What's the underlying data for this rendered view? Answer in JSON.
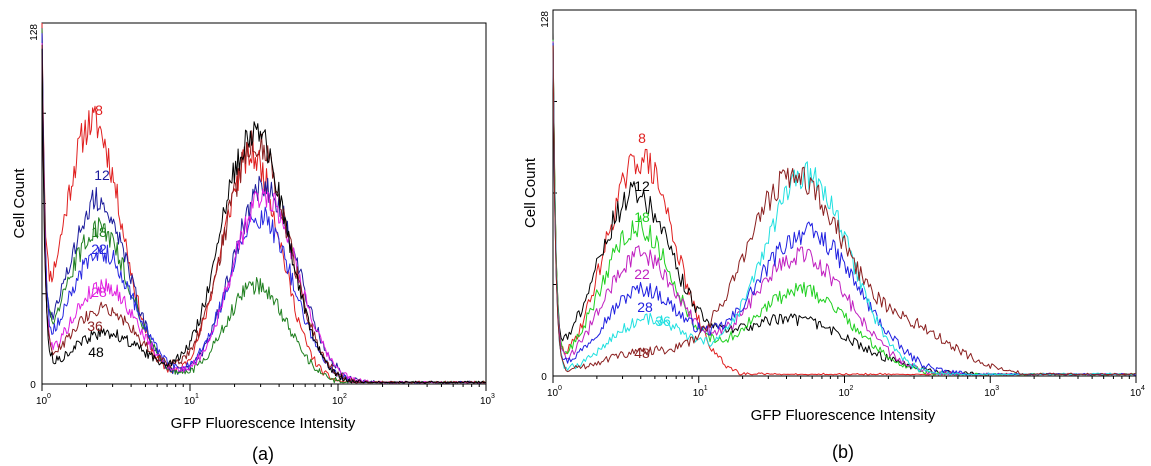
{
  "chart_data": [
    {
      "type": "line",
      "panel_label": "(a)",
      "xlabel": "GFP Fluorescence Intensity",
      "ylabel": "Cell Count",
      "xscale": "log",
      "xlim": [
        1,
        1000
      ],
      "ylim": [
        0,
        128
      ],
      "x_ticks": [
        {
          "base": "10",
          "exp": "0"
        },
        {
          "base": "10",
          "exp": "1"
        },
        {
          "base": "10",
          "exp": "2"
        },
        {
          "base": "10",
          "exp": "3"
        }
      ],
      "y_ticks": [
        "0",
        "128"
      ],
      "grid": false,
      "series": [
        {
          "name": "8",
          "color": "#e02020",
          "peaks": [
            {
              "x": 2.2,
              "y": 93,
              "w": 0.2
            },
            {
              "x": 26,
              "y": 81,
              "w": 0.2
            }
          ]
        },
        {
          "name": "12",
          "color": "#1c1c9c",
          "peaks": [
            {
              "x": 2.4,
              "y": 65,
              "w": 0.21
            },
            {
              "x": 32,
              "y": 70,
              "w": 0.22
            }
          ]
        },
        {
          "name": "18",
          "color": "#208020",
          "peaks": [
            {
              "x": 2.4,
              "y": 55,
              "w": 0.22
            },
            {
              "x": 28,
              "y": 35,
              "w": 0.21
            }
          ]
        },
        {
          "name": "22",
          "color": "#2828e0",
          "peaks": [
            {
              "x": 2.5,
              "y": 47,
              "w": 0.23
            },
            {
              "x": 30,
              "y": 59,
              "w": 0.22
            }
          ]
        },
        {
          "name": "28",
          "color": "#e020e0",
          "peaks": [
            {
              "x": 2.6,
              "y": 35,
              "w": 0.23
            },
            {
              "x": 32,
              "y": 67,
              "w": 0.22
            }
          ]
        },
        {
          "name": "36",
          "color": "#8b2020",
          "peaks": [
            {
              "x": 2.6,
              "y": 27,
              "w": 0.24
            },
            {
              "x": 28,
              "y": 85,
              "w": 0.22
            }
          ]
        },
        {
          "name": "48",
          "color": "#000000",
          "peaks": [
            {
              "x": 2.7,
              "y": 18,
              "w": 0.26
            },
            {
              "x": 27,
              "y": 90,
              "w": 0.22
            }
          ]
        }
      ]
    },
    {
      "type": "line",
      "panel_label": "(b)",
      "xlabel": "GFP Fluorescence Intensity",
      "ylabel": "Cell Count",
      "xscale": "log",
      "xlim": [
        1,
        10000
      ],
      "ylim": [
        0,
        128
      ],
      "x_ticks": [
        {
          "base": "10",
          "exp": "0"
        },
        {
          "base": "10",
          "exp": "1"
        },
        {
          "base": "10",
          "exp": "2"
        },
        {
          "base": "10",
          "exp": "3"
        },
        {
          "base": "10",
          "exp": "4"
        }
      ],
      "y_ticks": [
        "0",
        "128"
      ],
      "grid": false,
      "series": [
        {
          "name": "8",
          "color": "#e02020",
          "peaks": [
            {
              "x": 4.0,
              "y": 76,
              "w": 0.24
            }
          ]
        },
        {
          "name": "12",
          "color": "#000000",
          "peaks": [
            {
              "x": 3.6,
              "y": 62,
              "w": 0.26
            },
            {
              "x": 40,
              "y": 20,
              "w": 0.45
            }
          ]
        },
        {
          "name": "18",
          "color": "#20d020",
          "peaks": [
            {
              "x": 3.8,
              "y": 52,
              "w": 0.25
            },
            {
              "x": 50,
              "y": 30,
              "w": 0.35
            }
          ]
        },
        {
          "name": "22",
          "color": "#c020c0",
          "peaks": [
            {
              "x": 4.0,
              "y": 42,
              "w": 0.26
            },
            {
              "x": 50,
              "y": 42,
              "w": 0.34
            }
          ]
        },
        {
          "name": "28",
          "color": "#2020e0",
          "peaks": [
            {
              "x": 4.1,
              "y": 30,
              "w": 0.27
            },
            {
              "x": 55,
              "y": 50,
              "w": 0.36
            }
          ]
        },
        {
          "name": "36",
          "color": "#20e0e0",
          "peaks": [
            {
              "x": 4.5,
              "y": 20,
              "w": 0.27
            },
            {
              "x": 55,
              "y": 70,
              "w": 0.3
            }
          ]
        },
        {
          "name": "48",
          "color": "#8b2020",
          "peaks": [
            {
              "x": 4.0,
              "y": 8,
              "w": 0.3
            },
            {
              "x": 45,
              "y": 70,
              "w": 0.34
            },
            {
              "x": 300,
              "y": 15,
              "w": 0.3
            }
          ]
        }
      ]
    }
  ]
}
